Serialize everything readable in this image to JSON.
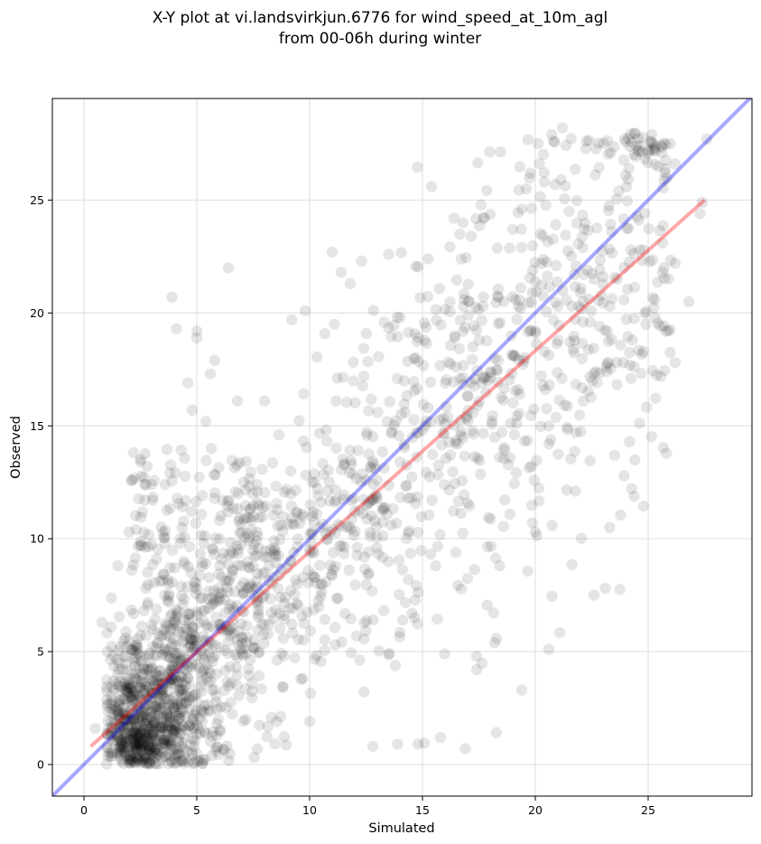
{
  "chart_data": {
    "type": "scatter",
    "title_lines": [
      "X-Y plot at vi.landsvirkjun.6776 for wind_speed_at_10m_agl",
      "from 00-06h during winter"
    ],
    "xlabel": "Simulated",
    "ylabel": "Observed",
    "xlim": [
      -1.4,
      29.6
    ],
    "ylim": [
      -1.4,
      29.5
    ],
    "xticks": [
      0,
      5,
      10,
      15,
      20,
      25
    ],
    "yticks": [
      0,
      5,
      10,
      15,
      20,
      25
    ],
    "grid": true,
    "point_color": "#000000",
    "point_alpha": 0.1,
    "identity_line": {
      "color": "#0000ff",
      "alpha": 0.35
    },
    "regression_line": {
      "color": "#ff0000",
      "alpha": 0.35,
      "x": [
        0.3,
        27.5
      ],
      "y": [
        0.8,
        25.0
      ]
    },
    "point_cloud_note": "approximately 2000 observation points, density concentrated near the 1:1 line",
    "points_sample": [
      [
        0.5,
        1.6
      ],
      [
        0.8,
        6.3
      ],
      [
        1.2,
        6.1
      ],
      [
        1.5,
        8.8
      ],
      [
        2.0,
        10.3
      ],
      [
        3.0,
        12.4
      ],
      [
        3.8,
        12.9
      ],
      [
        3.9,
        20.7
      ],
      [
        4.1,
        19.3
      ],
      [
        4.6,
        16.9
      ],
      [
        4.8,
        15.7
      ],
      [
        5.0,
        19.2
      ],
      [
        5.0,
        18.9
      ],
      [
        5.6,
        17.3
      ],
      [
        5.8,
        17.9
      ],
      [
        6.4,
        22.0
      ],
      [
        11.0,
        22.7
      ],
      [
        15.4,
        25.6
      ],
      [
        21.2,
        28.2
      ],
      [
        25.6,
        27.1
      ],
      [
        27.6,
        27.7
      ],
      [
        19.4,
        3.3
      ],
      [
        20.6,
        5.1
      ],
      [
        22.6,
        7.5
      ],
      [
        23.1,
        7.8
      ],
      [
        23.3,
        10.5
      ],
      [
        20.0,
        10.3
      ],
      [
        18.2,
        5.4
      ],
      [
        16.9,
        0.7
      ],
      [
        14.8,
        0.9
      ],
      [
        15.8,
        1.2
      ],
      [
        17.4,
        4.2
      ],
      [
        17.4,
        4.8
      ],
      [
        13.9,
        0.9
      ],
      [
        12.8,
        0.8
      ],
      [
        10.0,
        1.9
      ],
      [
        26.2,
        17.8
      ],
      [
        24.3,
        18.8
      ],
      [
        23.9,
        17.8
      ],
      [
        26.8,
        20.5
      ],
      [
        25.7,
        22.0
      ],
      [
        26.2,
        22.2
      ],
      [
        27.3,
        24.4
      ],
      [
        27.4,
        24.9
      ],
      [
        25.7,
        25.9
      ],
      [
        26.2,
        26.6
      ],
      [
        24.0,
        26.1
      ],
      [
        23.7,
        25.4
      ],
      [
        21.5,
        24.5
      ],
      [
        20.4,
        25.8
      ],
      [
        19.6,
        25.5
      ],
      [
        19.4,
        24.6
      ],
      [
        17.7,
        24.2
      ],
      [
        19.0,
        23.7
      ],
      [
        22.6,
        21.5
      ],
      [
        23.3,
        20.3
      ],
      [
        24.9,
        19.5
      ],
      [
        22.1,
        19.6
      ],
      [
        21.8,
        14.7
      ],
      [
        20.6,
        14.2
      ],
      [
        12.3,
        22.3
      ],
      [
        13.5,
        22.6
      ],
      [
        11.4,
        21.8
      ],
      [
        11.8,
        21.3
      ],
      [
        9.2,
        19.7
      ],
      [
        9.8,
        20.1
      ],
      [
        8.0,
        16.1
      ],
      [
        6.8,
        16.1
      ],
      [
        5.4,
        15.2
      ],
      [
        14.0,
        19.8
      ],
      [
        16.4,
        24.2
      ],
      [
        16.8,
        24.0
      ],
      [
        2.0,
        0.2
      ],
      [
        2.5,
        0.8
      ],
      [
        3.0,
        1.3
      ],
      [
        1.8,
        0.5
      ],
      [
        2.2,
        1.1
      ],
      [
        3.5,
        0.3
      ],
      [
        4.0,
        1.5
      ],
      [
        1.5,
        2.2
      ],
      [
        2.8,
        3.0
      ],
      [
        3.2,
        2.5
      ],
      [
        4.5,
        3.5
      ],
      [
        5.0,
        4.8
      ],
      [
        6.0,
        6.2
      ],
      [
        7.0,
        6.8
      ],
      [
        8.0,
        7.5
      ],
      [
        9.0,
        8.7
      ],
      [
        10.0,
        9.5
      ],
      [
        11.0,
        10.4
      ],
      [
        12.0,
        11.2
      ],
      [
        13.0,
        12.6
      ],
      [
        14.0,
        13.4
      ],
      [
        15.0,
        14.8
      ],
      [
        16.0,
        15.1
      ],
      [
        17.0,
        16.3
      ],
      [
        18.0,
        17.4
      ],
      [
        19.0,
        18.1
      ],
      [
        20.0,
        19.2
      ],
      [
        21.0,
        20.3
      ],
      [
        22.0,
        20.9
      ],
      [
        23.0,
        21.6
      ]
    ]
  }
}
